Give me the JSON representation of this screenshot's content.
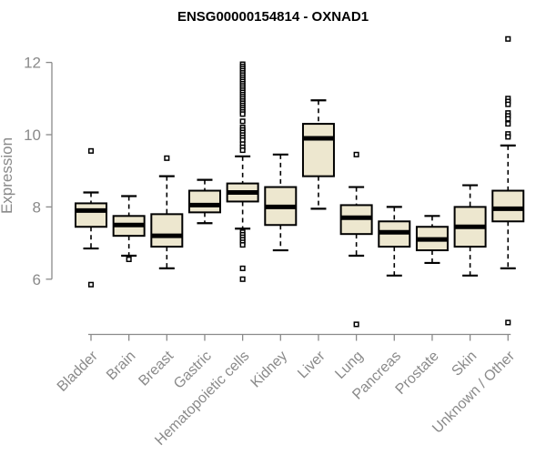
{
  "colors": {
    "background": "#ffffff",
    "box_fill": "#EDE7CF",
    "box_border": "#000000",
    "median": "#000000",
    "whisker": "#000000",
    "outlier_fill": "#ffffff",
    "axis": "#8a8a8a",
    "tick_label": "#8a8a8a",
    "title": "#000000"
  },
  "chart_data": {
    "type": "boxplot",
    "title": "ENSG00000154814 - OXNAD1",
    "xlabel": "",
    "ylabel": "Expression",
    "yticks": [
      6,
      8,
      10,
      12
    ],
    "ylim": [
      4.3,
      12.9
    ],
    "grid": false,
    "legend": null,
    "categories": [
      "Bladder",
      "Brain",
      "Breast",
      "Gastric",
      "Hematopoietic cells",
      "Kidney",
      "Liver",
      "Lung",
      "Pancreas",
      "Prostate",
      "Skin",
      "Unknown / Other"
    ],
    "series": [
      {
        "name": "Bladder",
        "low": 6.85,
        "q1": 7.45,
        "median": 7.9,
        "q3": 8.1,
        "high": 8.4,
        "outliers": [
          9.55,
          5.85
        ]
      },
      {
        "name": "Brain",
        "low": 6.65,
        "q1": 7.2,
        "median": 7.5,
        "q3": 7.75,
        "high": 8.3,
        "outliers": [
          6.55
        ]
      },
      {
        "name": "Breast",
        "low": 6.3,
        "q1": 6.9,
        "median": 7.2,
        "q3": 7.8,
        "high": 8.85,
        "outliers": [
          9.35
        ]
      },
      {
        "name": "Gastric",
        "low": 7.55,
        "q1": 7.85,
        "median": 8.05,
        "q3": 8.45,
        "high": 8.75,
        "outliers": []
      },
      {
        "name": "Hematopoietic cells",
        "low": 7.4,
        "q1": 8.15,
        "median": 8.4,
        "q3": 8.65,
        "high": 9.4,
        "outliers": [
          11.95,
          11.89,
          11.83,
          11.77,
          11.71,
          11.65,
          11.59,
          11.53,
          11.47,
          11.41,
          11.35,
          11.29,
          11.23,
          11.17,
          11.11,
          11.05,
          10.99,
          10.93,
          10.87,
          10.81,
          10.75,
          10.69,
          10.63,
          10.57,
          10.37,
          10.2,
          10.13,
          10.06,
          9.99,
          9.92,
          9.85,
          9.74,
          9.65,
          9.57,
          7.3,
          7.23,
          7.16,
          7.09,
          7.02,
          6.95,
          6.3,
          6.0
        ]
      },
      {
        "name": "Kidney",
        "low": 6.8,
        "q1": 7.5,
        "median": 8.0,
        "q3": 8.55,
        "high": 9.45,
        "outliers": []
      },
      {
        "name": "Liver",
        "low": 7.95,
        "q1": 8.85,
        "median": 9.9,
        "q3": 10.3,
        "high": 10.95,
        "outliers": []
      },
      {
        "name": "Lung",
        "low": 6.65,
        "q1": 7.25,
        "median": 7.7,
        "q3": 8.05,
        "high": 8.55,
        "outliers": [
          9.45,
          4.75
        ]
      },
      {
        "name": "Pancreas",
        "low": 6.1,
        "q1": 6.9,
        "median": 7.3,
        "q3": 7.6,
        "high": 8.0,
        "outliers": []
      },
      {
        "name": "Prostate",
        "low": 6.45,
        "q1": 6.8,
        "median": 7.1,
        "q3": 7.45,
        "high": 7.75,
        "outliers": []
      },
      {
        "name": "Skin",
        "low": 6.1,
        "q1": 6.9,
        "median": 7.45,
        "q3": 8.0,
        "high": 8.6,
        "outliers": []
      },
      {
        "name": "Unknown / Other",
        "low": 6.3,
        "q1": 7.6,
        "median": 7.95,
        "q3": 8.45,
        "high": 9.7,
        "outliers": [
          12.65,
          11.0,
          10.92,
          10.84,
          10.6,
          10.52,
          10.44,
          10.3,
          10.02,
          9.94,
          4.8
        ]
      }
    ]
  }
}
